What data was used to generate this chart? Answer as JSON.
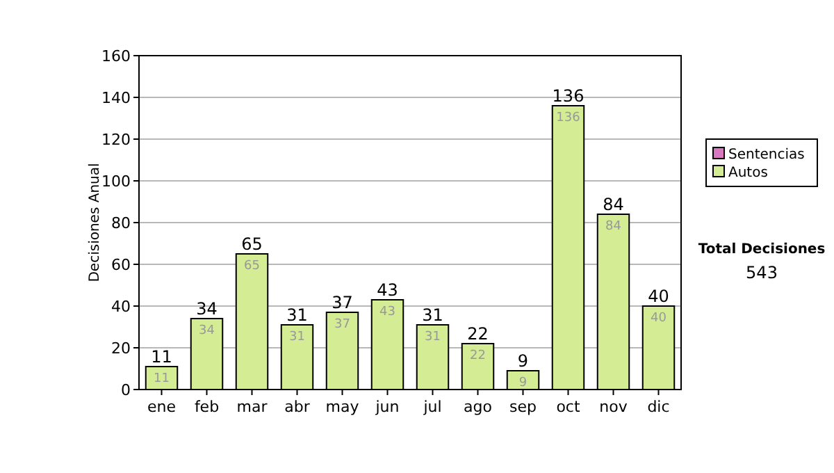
{
  "chart_data": {
    "type": "bar",
    "stacked": true,
    "ylabel": "Decisiones Anual",
    "categories": [
      "ene",
      "feb",
      "mar",
      "abr",
      "may",
      "jun",
      "jul",
      "ago",
      "sep",
      "oct",
      "nov",
      "dic"
    ],
    "series": [
      {
        "name": "Sentencias",
        "color": "#d878c0",
        "values": [
          0,
          0,
          0,
          0,
          0,
          0,
          0,
          0,
          0,
          0,
          0,
          0
        ]
      },
      {
        "name": "Autos",
        "color": "#d4ec94",
        "values": [
          11,
          34,
          65,
          31,
          37,
          43,
          31,
          22,
          9,
          136,
          84,
          40
        ],
        "value_labels": [
          "11",
          "34",
          "65",
          "31",
          "37",
          "43",
          "31",
          "22",
          "9",
          "136",
          "84",
          "40"
        ]
      }
    ],
    "totals": [
      "11",
      "34",
      "65",
      "31",
      "37",
      "43",
      "31",
      "22",
      "9",
      "136",
      "84",
      "40"
    ],
    "ylim": [
      0,
      160
    ],
    "yticks": [
      0,
      20,
      40,
      60,
      80,
      100,
      120,
      140,
      160
    ],
    "grid": "y",
    "legend": "right",
    "annotations": [
      "Total Decisiones",
      "543"
    ]
  }
}
